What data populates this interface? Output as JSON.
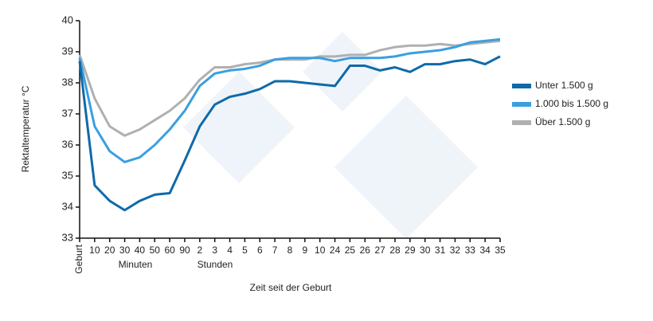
{
  "chart_data": {
    "type": "line",
    "y_label": "Rektaltemperatur °C",
    "x_label": "Zeit seit der Geburt",
    "x_groups": [
      "Minuten",
      "Stunden"
    ],
    "categories": [
      "Geburt",
      "10",
      "20",
      "30",
      "40",
      "50",
      "60",
      "90",
      "2",
      "3",
      "4",
      "5",
      "6",
      "7",
      "8",
      "9",
      "10",
      "24",
      "25",
      "26",
      "27",
      "28",
      "29",
      "30",
      "31",
      "32",
      "33",
      "34",
      "35"
    ],
    "ylim": [
      33,
      40
    ],
    "yticks": [
      33,
      34,
      35,
      36,
      37,
      38,
      39,
      40
    ],
    "legend": "right",
    "series": [
      {
        "name": "Unter 1.500 g",
        "color": "#0f6aa8",
        "values": [
          38.7,
          34.7,
          34.2,
          33.9,
          34.2,
          34.4,
          34.45,
          35.5,
          36.6,
          37.3,
          37.55,
          37.65,
          37.8,
          38.05,
          38.05,
          38.0,
          37.95,
          37.9,
          38.55,
          38.55,
          38.4,
          38.5,
          38.35,
          38.6,
          38.6,
          38.7,
          38.75,
          38.6,
          38.85
        ]
      },
      {
        "name": "1.000 bis 1.500 g",
        "color": "#3a9fe0",
        "values": [
          38.8,
          36.6,
          35.8,
          35.45,
          35.6,
          36.0,
          36.5,
          37.1,
          37.9,
          38.3,
          38.4,
          38.45,
          38.55,
          38.75,
          38.8,
          38.8,
          38.8,
          38.7,
          38.8,
          38.8,
          38.8,
          38.85,
          38.95,
          39.0,
          39.05,
          39.15,
          39.3,
          39.35,
          39.4
        ]
      },
      {
        "name": "Über 1.500 g",
        "color": "#b0b0b0",
        "values": [
          38.9,
          37.5,
          36.6,
          36.3,
          36.5,
          36.8,
          37.1,
          37.5,
          38.1,
          38.5,
          38.5,
          38.6,
          38.65,
          38.75,
          38.75,
          38.75,
          38.85,
          38.85,
          38.9,
          38.9,
          39.05,
          39.15,
          39.2,
          39.2,
          39.25,
          39.2,
          39.25,
          39.3,
          39.35
        ]
      }
    ]
  }
}
